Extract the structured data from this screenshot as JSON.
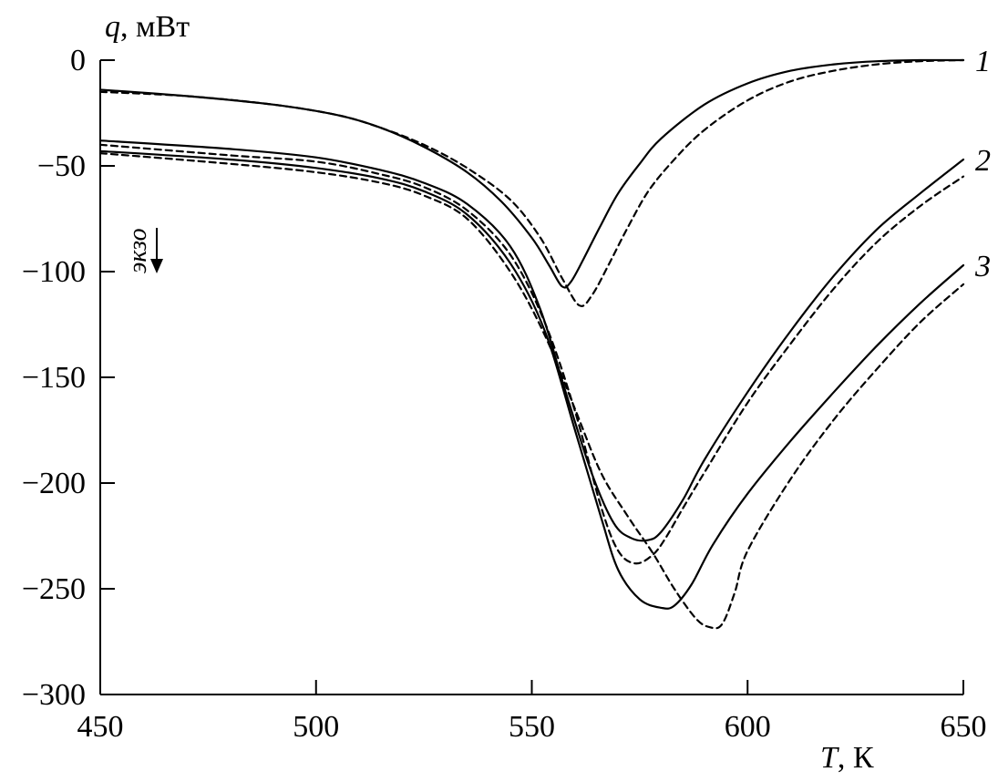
{
  "chart_data": {
    "type": "line",
    "title": "",
    "xlabel_var": "T",
    "xlabel_unit": ", К",
    "ylabel_var": "q",
    "ylabel_unit": ", мВт",
    "xlim": [
      450,
      650
    ],
    "ylim": [
      -300,
      0
    ],
    "xticks": [
      450,
      500,
      550,
      600,
      650
    ],
    "yticks": [
      0,
      -50,
      -100,
      -150,
      -200,
      -250,
      -300
    ],
    "xtick_labels": [
      "450",
      "500",
      "550",
      "600",
      "650"
    ],
    "ytick_labels": [
      "0",
      "−50",
      "−100",
      "−150",
      "−200",
      "−250",
      "−300"
    ],
    "grid": false,
    "annotation": {
      "text": "экзо",
      "arrow": "down"
    },
    "series": [
      {
        "label": "1",
        "style": "solid",
        "x": [
          450,
          470,
          490,
          505,
          515,
          525,
          535,
          543,
          550,
          554,
          557,
          559,
          562,
          566,
          570,
          575,
          580,
          590,
          600,
          610,
          620,
          630,
          640,
          650
        ],
        "y": [
          -14,
          -17,
          -21,
          -26,
          -32,
          -41,
          -53,
          -67,
          -84,
          -97,
          -107,
          -105,
          -94,
          -78,
          -63,
          -49,
          -37,
          -21,
          -11,
          -5,
          -2,
          -0.5,
          0,
          0
        ]
      },
      {
        "label": "1",
        "style": "dashed",
        "x": [
          450,
          470,
          490,
          505,
          515,
          525,
          535,
          545,
          552,
          557,
          561,
          564,
          568,
          572,
          577,
          583,
          590,
          600,
          610,
          620,
          630,
          640,
          650
        ],
        "y": [
          -15,
          -17,
          -21,
          -26,
          -32,
          -40,
          -51,
          -66,
          -84,
          -103,
          -116,
          -111,
          -96,
          -80,
          -62,
          -47,
          -33,
          -19,
          -10,
          -5,
          -2,
          -0.5,
          0
        ]
      },
      {
        "label": "2",
        "style": "solid",
        "x": [
          450,
          480,
          500,
          515,
          525,
          535,
          545,
          552,
          558,
          564,
          569,
          573,
          577,
          580,
          585,
          590,
          600,
          610,
          620,
          630,
          640,
          650
        ],
        "y": [
          -38,
          -42,
          -46,
          -52,
          -58,
          -68,
          -88,
          -118,
          -158,
          -196,
          -219,
          -226,
          -227,
          -223,
          -208,
          -189,
          -157,
          -128,
          -102,
          -80,
          -63,
          -47
        ]
      },
      {
        "label": "2",
        "style": "dashed",
        "x": [
          450,
          480,
          500,
          515,
          525,
          535,
          545,
          553,
          560,
          566,
          570,
          574,
          578,
          581,
          585,
          590,
          600,
          610,
          620,
          630,
          640,
          650
        ],
        "y": [
          -40,
          -45,
          -48,
          -54,
          -60,
          -71,
          -92,
          -124,
          -166,
          -211,
          -232,
          -238,
          -234,
          -226,
          -212,
          -195,
          -162,
          -134,
          -108,
          -86,
          -69,
          -55
        ]
      },
      {
        "label": "3",
        "style": "solid",
        "x": [
          450,
          480,
          500,
          515,
          525,
          535,
          545,
          553,
          560,
          566,
          570,
          575,
          580,
          583,
          587,
          592,
          600,
          610,
          620,
          630,
          640,
          650
        ],
        "y": [
          -43,
          -47,
          -51,
          -56,
          -62,
          -73,
          -96,
          -128,
          -175,
          -216,
          -241,
          -255,
          -259,
          -258,
          -248,
          -229,
          -205,
          -180,
          -157,
          -135,
          -115,
          -97
        ]
      },
      {
        "label": "3",
        "style": "dashed",
        "x": [
          450,
          480,
          500,
          515,
          525,
          535,
          545,
          553,
          560,
          566,
          572,
          578,
          583,
          588,
          591,
          594,
          597,
          600,
          610,
          620,
          630,
          640,
          650
        ],
        "y": [
          -44,
          -49,
          -53,
          -58,
          -64,
          -75,
          -100,
          -130,
          -165,
          -195,
          -215,
          -233,
          -250,
          -264,
          -268,
          -267,
          -252,
          -232,
          -198,
          -170,
          -146,
          -124,
          -106
        ]
      }
    ],
    "curve_labels": [
      {
        "text": "1",
        "series_y_at_end": 0
      },
      {
        "text": "2",
        "series_y_at_end": -47
      },
      {
        "text": "3",
        "series_y_at_end": -97
      }
    ]
  }
}
